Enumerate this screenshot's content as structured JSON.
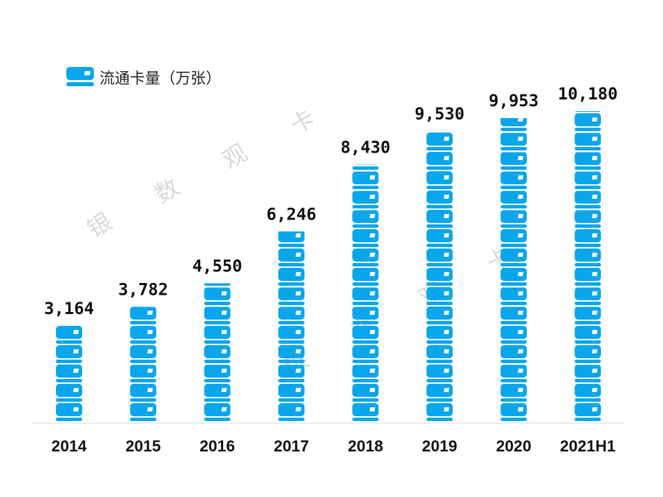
{
  "chart_data": {
    "type": "bar",
    "style": "pictograph stacked card icons",
    "categories": [
      "2014",
      "2015",
      "2016",
      "2017",
      "2018",
      "2019",
      "2020",
      "2021H1"
    ],
    "series": [
      {
        "name": "流通卡量（万张）",
        "values": [
          3164,
          3782,
          4550,
          6246,
          8430,
          9530,
          9953,
          10180
        ]
      }
    ],
    "data_labels": [
      "3,164",
      "3,782",
      "4,550",
      "6,246",
      "8,430",
      "9,530",
      "9,953",
      "10,180"
    ],
    "title": "",
    "xlabel": "",
    "ylabel": "",
    "ylim": [
      0,
      10180
    ],
    "grid": false,
    "legend_position": "top-left",
    "color": "#0aa6ec",
    "watermark": "银 数 观 卡"
  }
}
